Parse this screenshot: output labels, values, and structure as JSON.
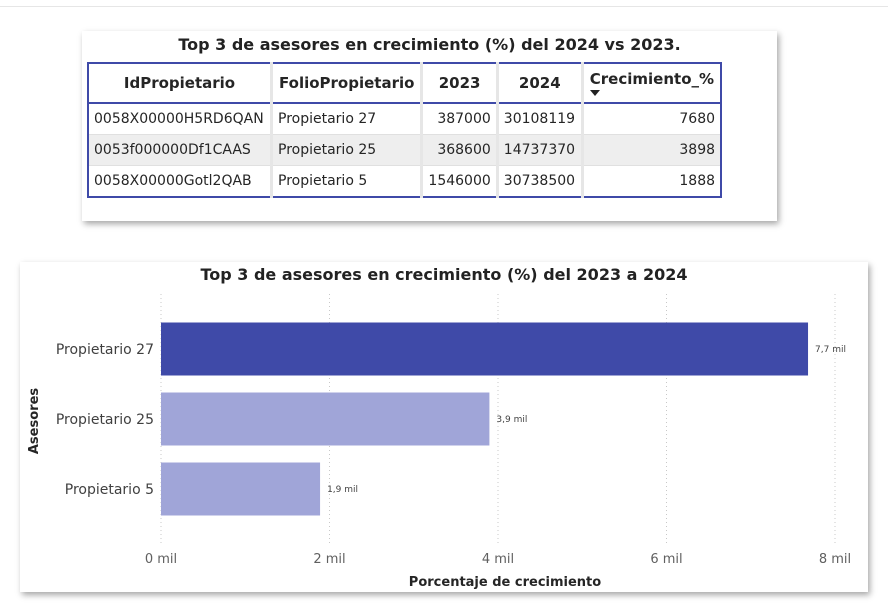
{
  "table_visual": {
    "title": "Top 3 de asesores en crecimiento (%) del 2024 vs 2023.",
    "columns": [
      "IdPropietario",
      "FolioPropietario",
      "2023",
      "2024",
      "Crecimiento_%"
    ],
    "rows": [
      [
        "0058X00000H5RD6QAN",
        "Propietario 27",
        "387000",
        "30108119",
        "7680"
      ],
      [
        "0053f000000Df1CAAS",
        "Propietario 25",
        "368600",
        "14737370",
        "3898"
      ],
      [
        "0058X00000Gotl2QAB",
        "Propietario 5",
        "1546000",
        "30738500",
        "1888"
      ]
    ],
    "sorted_column": "Crecimiento_%"
  },
  "chart_data": {
    "type": "bar",
    "orientation": "horizontal",
    "title": "Top 3 de asesores en crecimiento (%) del 2023 a 2024",
    "xlabel": "Porcentaje de crecimiento",
    "ylabel": "Asesores",
    "categories": [
      "Propietario 27",
      "Propietario 25",
      "Propietario 5"
    ],
    "values": [
      7680,
      3898,
      1888
    ],
    "data_labels": [
      "7,7 mil",
      "3,9 mil",
      "1,9 mil"
    ],
    "xlim": [
      0,
      8000
    ],
    "xticks": [
      0,
      2000,
      4000,
      6000,
      8000
    ],
    "xtick_labels": [
      "0 mil",
      "2 mil",
      "4 mil",
      "6 mil",
      "8 mil"
    ],
    "grid": "vertical dotted",
    "highlight_color": "#3f4aa8",
    "bar_color": "#a0a5d8"
  }
}
